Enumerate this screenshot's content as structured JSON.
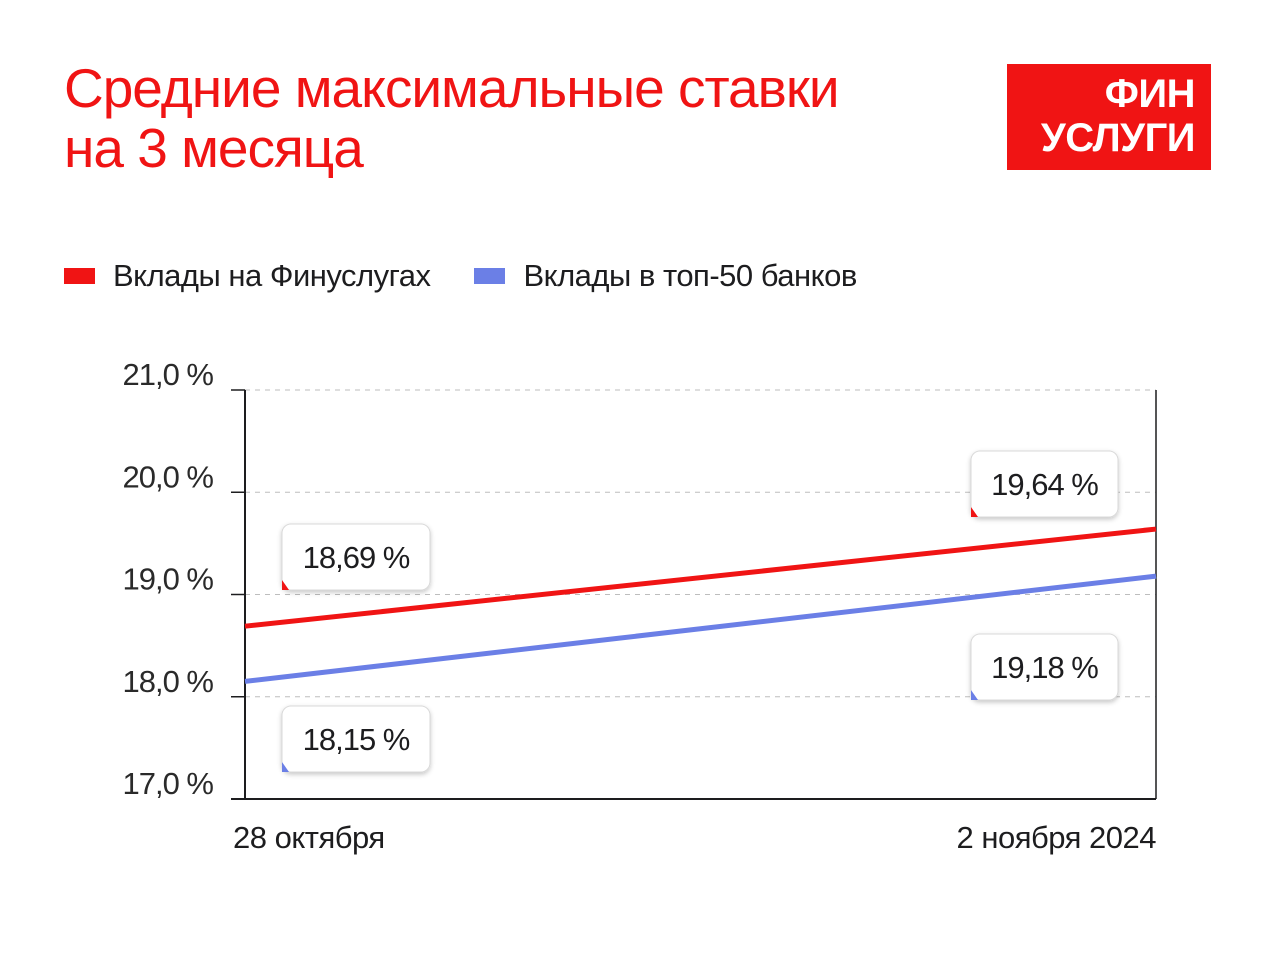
{
  "header": {
    "title_line1": "Средние максимальные ставки",
    "title_line2": "на 3 месяца"
  },
  "logo": {
    "line1": "ФИН",
    "line2": "УСЛУГИ",
    "color": "#f01414"
  },
  "chart_data": {
    "type": "line",
    "x": [
      "28 октября",
      "2 ноября 2024"
    ],
    "series": [
      {
        "name": "Вклады на Финуслугах",
        "color": "#f01414",
        "values": [
          18.69,
          19.64
        ],
        "labels": [
          "18,69 %",
          "19,64 %"
        ]
      },
      {
        "name": "Вклады в топ-50 банков",
        "color": "#6b7fe6",
        "values": [
          18.15,
          19.18
        ],
        "labels": [
          "18,15 %",
          "19,18 %"
        ]
      }
    ],
    "y_ticks": [
      17,
      18,
      19,
      20,
      21
    ],
    "y_tick_labels": [
      "17,0 %",
      "18,0 %",
      "19,0 %",
      "20,0 %",
      "21,0 %"
    ],
    "ylim": [
      17,
      21
    ],
    "grid": true,
    "legend_position": "top-left"
  }
}
